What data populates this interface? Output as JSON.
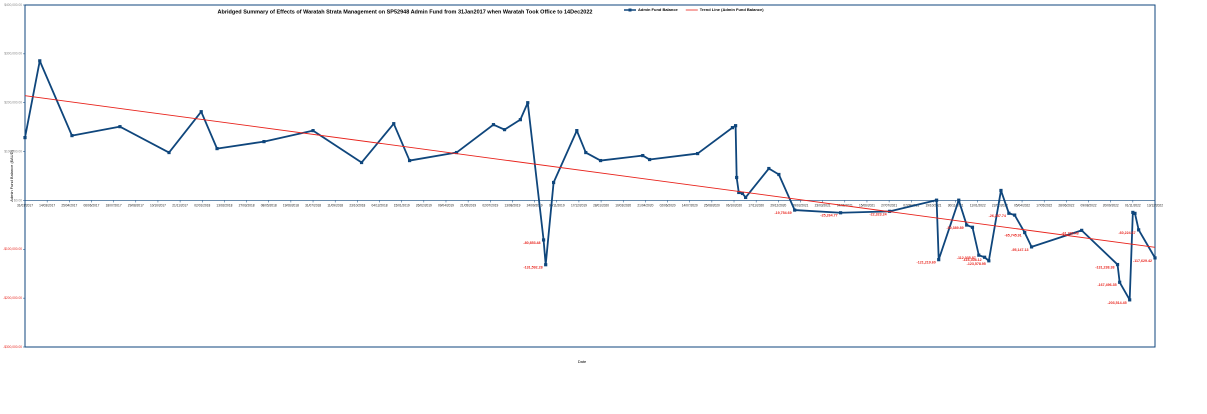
{
  "chart_data": {
    "type": "line",
    "title": "Abridged Summary of Effects of Waratah Strata Management on SP52948 Admin Fund from 31Jan2017 when Waratah Took Office to 14Dec2022",
    "x_label": "Date",
    "y_label": "Admin Fund Balance ($AUD)",
    "legend": "top",
    "grid": false,
    "xlim": [
      "2017-01-31",
      "2022-12-13"
    ],
    "ylim": [
      -300000,
      400000
    ],
    "yticks": [
      {
        "value": 400000,
        "label": "$400,000.00"
      },
      {
        "value": 300000,
        "label": "$300,000.00"
      },
      {
        "value": 200000,
        "label": "$200,000.00"
      },
      {
        "value": 100000,
        "label": "$100,000.00"
      },
      {
        "value": 0,
        "label": "$0.00"
      },
      {
        "value": -100000,
        "label": "-$100,000.00"
      },
      {
        "value": -200000,
        "label": "-$200,000.00"
      },
      {
        "value": -300000,
        "label": "-$300,000.00"
      }
    ],
    "xticks": [
      {
        "value": "2017-01-31",
        "label": "31/01/2017"
      },
      {
        "value": "2017-03-14",
        "label": "14/03/2017"
      },
      {
        "value": "2017-04-25",
        "label": "25/04/2017"
      },
      {
        "value": "2017-06-06",
        "label": "06/06/2017"
      },
      {
        "value": "2017-07-18",
        "label": "18/07/2017"
      },
      {
        "value": "2017-08-29",
        "label": "29/08/2017"
      },
      {
        "value": "2017-10-10",
        "label": "10/10/2017"
      },
      {
        "value": "2017-11-21",
        "label": "21/11/2017"
      },
      {
        "value": "2018-01-02",
        "label": "02/01/2018"
      },
      {
        "value": "2018-02-13",
        "label": "13/02/2018"
      },
      {
        "value": "2018-03-27",
        "label": "27/03/2018"
      },
      {
        "value": "2018-05-08",
        "label": "08/05/2018"
      },
      {
        "value": "2018-06-19",
        "label": "19/06/2018"
      },
      {
        "value": "2018-07-31",
        "label": "31/07/2018"
      },
      {
        "value": "2018-09-11",
        "label": "11/09/2018"
      },
      {
        "value": "2018-10-23",
        "label": "23/10/2018"
      },
      {
        "value": "2018-12-04",
        "label": "04/12/2018"
      },
      {
        "value": "2019-01-15",
        "label": "15/01/2019"
      },
      {
        "value": "2019-02-26",
        "label": "26/02/2019"
      },
      {
        "value": "2019-04-09",
        "label": "09/04/2019"
      },
      {
        "value": "2019-05-21",
        "label": "21/05/2019"
      },
      {
        "value": "2019-07-02",
        "label": "02/07/2019"
      },
      {
        "value": "2019-08-13",
        "label": "13/08/2019"
      },
      {
        "value": "2019-09-24",
        "label": "24/09/2019"
      },
      {
        "value": "2019-11-05",
        "label": "05/11/2019"
      },
      {
        "value": "2019-12-17",
        "label": "17/12/2019"
      },
      {
        "value": "2020-01-28",
        "label": "28/01/2020"
      },
      {
        "value": "2020-03-10",
        "label": "10/03/2020"
      },
      {
        "value": "2020-04-21",
        "label": "21/04/2020"
      },
      {
        "value": "2020-06-02",
        "label": "02/06/2020"
      },
      {
        "value": "2020-07-14",
        "label": "14/07/2020"
      },
      {
        "value": "2020-08-25",
        "label": "25/08/2020"
      },
      {
        "value": "2020-10-06",
        "label": "06/10/2020"
      },
      {
        "value": "2020-11-17",
        "label": "17/11/2020"
      },
      {
        "value": "2020-12-29",
        "label": "29/12/2020"
      },
      {
        "value": "2021-02-09",
        "label": "09/02/2021"
      },
      {
        "value": "2021-03-23",
        "label": "23/03/2021"
      },
      {
        "value": "2021-05-04",
        "label": "04/05/2021"
      },
      {
        "value": "2021-06-15",
        "label": "15/06/2021"
      },
      {
        "value": "2021-07-27",
        "label": "27/07/2021"
      },
      {
        "value": "2021-09-07",
        "label": "07/09/2021"
      },
      {
        "value": "2021-10-19",
        "label": "19/10/2021"
      },
      {
        "value": "2021-11-30",
        "label": "30/11/2021"
      },
      {
        "value": "2022-01-11",
        "label": "11/01/2022"
      },
      {
        "value": "2022-02-22",
        "label": "22/02/2022"
      },
      {
        "value": "2022-04-05",
        "label": "05/04/2022"
      },
      {
        "value": "2022-05-17",
        "label": "17/05/2022"
      },
      {
        "value": "2022-06-28",
        "label": "28/06/2022"
      },
      {
        "value": "2022-08-09",
        "label": "09/08/2022"
      },
      {
        "value": "2022-09-20",
        "label": "20/09/2022"
      },
      {
        "value": "2022-11-01",
        "label": "01/11/2022"
      },
      {
        "value": "2022-12-13",
        "label": "13/12/2022"
      }
    ],
    "series": [
      {
        "name": "Admin Fund Balance",
        "color": "#0f467c",
        "marker": "square",
        "x": [
          "2017-01-31",
          "2017-02-28",
          "2017-04-30",
          "2017-07-30",
          "2017-10-31",
          "2017-12-31",
          "2018-01-30",
          "2018-04-29",
          "2018-07-31",
          "2018-10-31",
          "2018-12-31",
          "2019-01-30",
          "2019-04-29",
          "2019-07-08",
          "2019-07-29",
          "2019-08-28",
          "2019-09-11",
          "2019-10-11",
          "2019-10-15",
          "2019-10-30",
          "2019-12-13",
          "2019-12-30",
          "2020-01-27",
          "2020-04-16",
          "2020-04-29",
          "2020-07-29",
          "2020-10-03",
          "2020-10-09",
          "2020-10-11",
          "2020-10-15",
          "2020-10-22",
          "2020-10-28",
          "2020-12-11",
          "2020-12-30",
          "2021-01-29",
          "2021-04-26",
          "2021-07-28",
          "2021-10-25",
          "2021-10-29",
          "2021-12-06",
          "2021-12-21",
          "2022-01-01",
          "2022-01-13",
          "2022-01-24",
          "2022-02-01",
          "2022-02-24",
          "2022-03-11",
          "2022-03-22",
          "2022-04-10",
          "2022-04-23",
          "2022-07-27",
          "2022-10-03",
          "2022-10-07",
          "2022-10-26",
          "2022-11-01",
          "2022-11-05",
          "2022-11-12",
          "2022-12-13"
        ],
        "values": [
          128600,
          285700,
          132700,
          151000,
          98000,
          181600,
          106100,
          120400,
          142900,
          77600,
          157100,
          81600,
          98000,
          155100,
          144900,
          165300,
          200000,
          -80853.48,
          -131592.28,
          36700,
          142900,
          98000,
          81600,
          91800,
          83700,
          95900,
          149000,
          153000,
          46900,
          16300,
          14300,
          6100,
          65300,
          53100,
          -19754.69,
          -25264.77,
          -22323.24,
          500,
          -121219.6,
          500,
          -50389.89,
          -55000,
          -112035.87,
          -116308.12,
          -123578.95,
          20400,
          -26287.74,
          -30000,
          -65745.91,
          -95147.13,
          -61289.48,
          -131238.38,
          -167496.35,
          -203514.45,
          -24500,
          -26500,
          -60224.67,
          -117629.42
        ],
        "value_labels": [
          null,
          null,
          null,
          null,
          null,
          null,
          null,
          null,
          null,
          null,
          null,
          null,
          null,
          null,
          null,
          null,
          null,
          "-80,853.48",
          "-131,592.28",
          null,
          null,
          null,
          null,
          null,
          null,
          null,
          null,
          null,
          null,
          null,
          null,
          null,
          null,
          null,
          "-19,754.69",
          "-25,264.77",
          "-22,323.24",
          null,
          "-121,219.60",
          null,
          "-50,389.89",
          null,
          "-112,035.87",
          "-116,308.12",
          "-123,578.95",
          null,
          "-26,287.74",
          null,
          "-65,745.91",
          "-95,147.13",
          "-61,289.48",
          "-131,238.38",
          "-167,496.35",
          "-203,514.45",
          null,
          null,
          "-60,224.67",
          "-117,629.42"
        ]
      },
      {
        "name": "Trend Line (Admin Fund Balance)",
        "color": "#e8221b",
        "marker": "none",
        "x": [
          "2017-01-31",
          "2022-12-13"
        ],
        "values": [
          214300,
          -95900
        ]
      }
    ]
  }
}
